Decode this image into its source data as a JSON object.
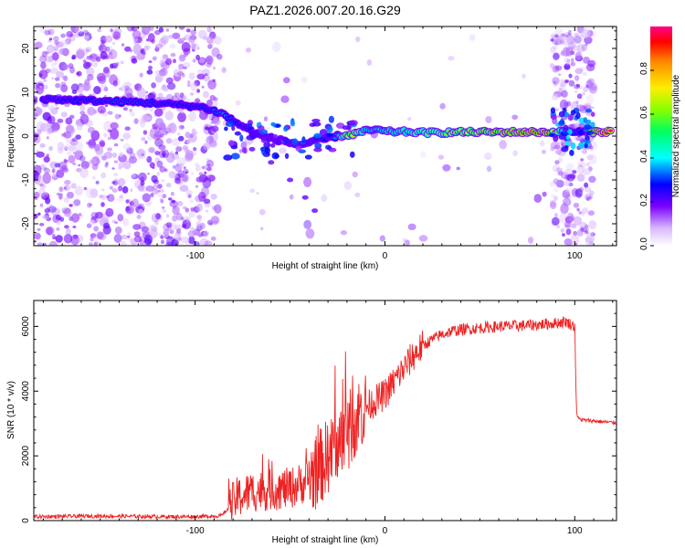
{
  "title": "PAZ1.2026.007.20.16.G29",
  "chart_data": [
    {
      "type": "heatmap",
      "xlabel": "Height of straight line (km)",
      "ylabel": "Frequency (Hz)",
      "xlim": [
        -185,
        122
      ],
      "ylim": [
        -25,
        25
      ],
      "xticks": [
        -100,
        0,
        100
      ],
      "yticks": [
        -20,
        -10,
        0,
        10,
        20
      ],
      "colorbar": {
        "label": "Normalized spectral amplitude",
        "range": [
          0,
          1
        ],
        "ticks": [
          0.0,
          0.2,
          0.4,
          0.6,
          0.8
        ]
      },
      "ridge": [
        {
          "x": -180,
          "f": 8.5,
          "amp": 0.25
        },
        {
          "x": -165,
          "f": 8.2,
          "amp": 0.28
        },
        {
          "x": -150,
          "f": 8.0,
          "amp": 0.3
        },
        {
          "x": -135,
          "f": 7.8,
          "amp": 0.32
        },
        {
          "x": -120,
          "f": 7.5,
          "amp": 0.3
        },
        {
          "x": -105,
          "f": 7.0,
          "amp": 0.28
        },
        {
          "x": -95,
          "f": 6.5,
          "amp": 0.3
        },
        {
          "x": -85,
          "f": 5.0,
          "amp": 0.35
        },
        {
          "x": -80,
          "f": 3.5,
          "amp": 0.3
        },
        {
          "x": -72,
          "f": 1.5,
          "amp": 0.25
        },
        {
          "x": -65,
          "f": 0.0,
          "amp": 0.22
        },
        {
          "x": -55,
          "f": -1.0,
          "amp": 0.2
        },
        {
          "x": -45,
          "f": -2.0,
          "amp": 0.2
        },
        {
          "x": -35,
          "f": -1.0,
          "amp": 0.25
        },
        {
          "x": -25,
          "f": 0.0,
          "amp": 0.35
        },
        {
          "x": -18,
          "f": 0.3,
          "amp": 0.8
        },
        {
          "x": -12,
          "f": 1.0,
          "amp": 0.5
        },
        {
          "x": -5,
          "f": 1.5,
          "amp": 0.4
        },
        {
          "x": 0,
          "f": 1.0,
          "amp": 0.45
        },
        {
          "x": 10,
          "f": 1.0,
          "amp": 0.5
        },
        {
          "x": 20,
          "f": 0.8,
          "amp": 0.55
        },
        {
          "x": 30,
          "f": 0.8,
          "amp": 0.6
        },
        {
          "x": 40,
          "f": 0.9,
          "amp": 0.7
        },
        {
          "x": 50,
          "f": 0.9,
          "amp": 0.75
        },
        {
          "x": 60,
          "f": 0.9,
          "amp": 0.8
        },
        {
          "x": 70,
          "f": 0.9,
          "amp": 0.85
        },
        {
          "x": 80,
          "f": 0.9,
          "amp": 0.9
        },
        {
          "x": 86,
          "f": 0.9,
          "amp": 0.9
        },
        {
          "x": 95,
          "f": 1.0,
          "amp": 0.35
        },
        {
          "x": 105,
          "f": 1.0,
          "amp": 0.3
        },
        {
          "x": 112,
          "f": 1.0,
          "amp": 0.95
        },
        {
          "x": 120,
          "f": 1.0,
          "amp": 1.0
        }
      ],
      "secondary_branch": [
        {
          "x": -70,
          "f": -3.0
        },
        {
          "x": -60,
          "f": -6.0
        },
        {
          "x": -50,
          "f": -10.0
        },
        {
          "x": -42,
          "f": -14.0
        },
        {
          "x": -37,
          "f": -17.0
        }
      ]
    },
    {
      "type": "line",
      "xlabel": "Height of straight line (km)",
      "ylabel": "SNR (10 * v/v)",
      "xlim": [
        -185,
        122
      ],
      "ylim": [
        0,
        6800
      ],
      "xticks": [
        -100,
        0,
        100
      ],
      "yticks": [
        0,
        2000,
        4000,
        6000
      ],
      "series": [
        {
          "name": "SNR",
          "color": "#ee2222",
          "x": [
            -185,
            -170,
            -150,
            -130,
            -110,
            -95,
            -86,
            -82,
            -78,
            -70,
            -60,
            -50,
            -42,
            -35,
            -30,
            -25,
            -20,
            -17,
            -14,
            -10,
            -5,
            0,
            5,
            10,
            15,
            20,
            25,
            30,
            35,
            40,
            50,
            60,
            70,
            80,
            90,
            95,
            100,
            101,
            102,
            105,
            110,
            115,
            122
          ],
          "y": [
            120,
            130,
            140,
            130,
            120,
            130,
            150,
            400,
            700,
            900,
            950,
            1000,
            1200,
            1600,
            2000,
            2400,
            2700,
            3000,
            3300,
            3500,
            3700,
            3900,
            4300,
            4700,
            5100,
            5400,
            5600,
            5750,
            5850,
            5900,
            5950,
            6000,
            6020,
            6050,
            6100,
            6150,
            6000,
            3300,
            3150,
            3100,
            3080,
            3050,
            3020
          ]
        }
      ]
    }
  ]
}
